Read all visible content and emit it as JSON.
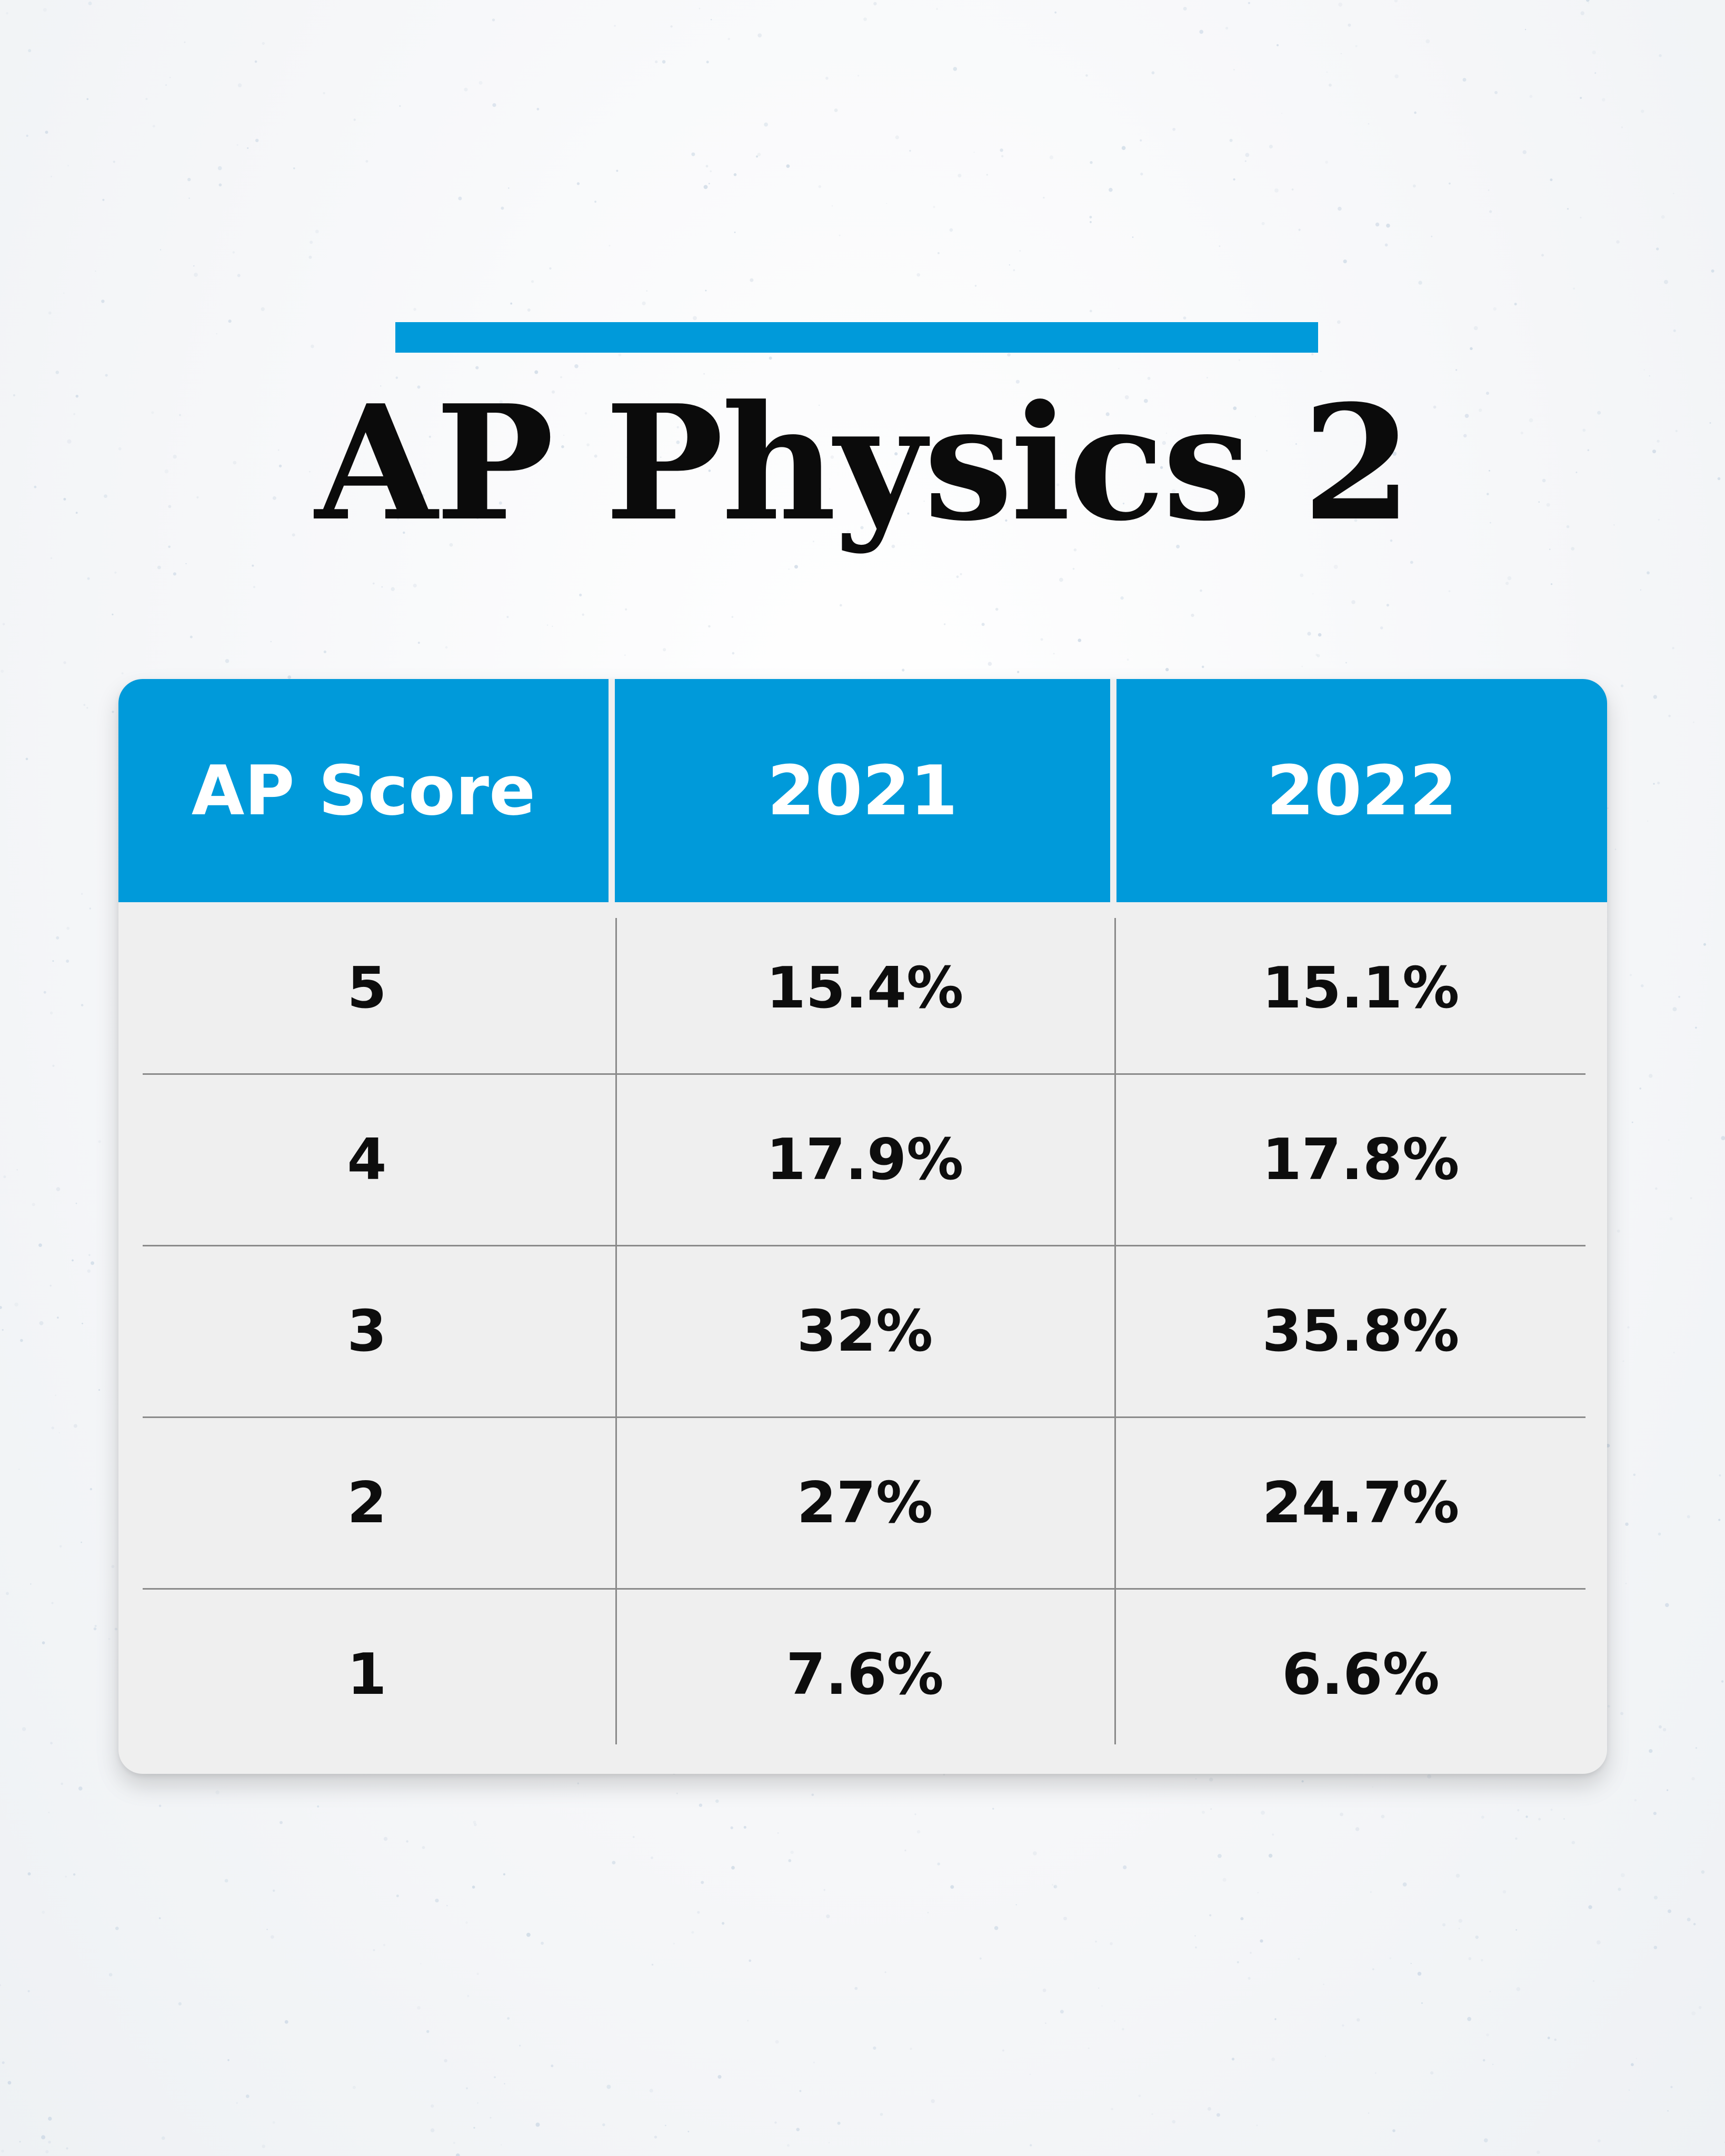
{
  "title": "AP Physics 2",
  "colors": {
    "accent": "#009ADA",
    "header_background": "#009ADA",
    "header_text": "#FFFFFF",
    "body_background": "#EFEFEF",
    "body_text": "#0D0D0D",
    "title_text": "#0B0B0B",
    "page_background": "#F6F7F9"
  },
  "table": {
    "headers": [
      "AP Score",
      "2021",
      "2022"
    ],
    "rows": [
      [
        "5",
        "15.4%",
        "15.1%"
      ],
      [
        "4",
        "17.9%",
        "17.8%"
      ],
      [
        "3",
        "32%",
        "35.8%"
      ],
      [
        "2",
        "27%",
        "24.7%"
      ],
      [
        "1",
        "7.6%",
        "6.6%"
      ]
    ]
  },
  "chart_data": {
    "type": "table",
    "title": "AP Physics 2",
    "columns": [
      "AP Score",
      "2021",
      "2022"
    ],
    "categories": [
      "5",
      "4",
      "3",
      "2",
      "1"
    ],
    "series": [
      {
        "name": "2021",
        "values": [
          15.4,
          17.9,
          32,
          27,
          7.6
        ]
      },
      {
        "name": "2022",
        "values": [
          15.1,
          17.8,
          35.8,
          24.7,
          6.6
        ]
      }
    ]
  }
}
